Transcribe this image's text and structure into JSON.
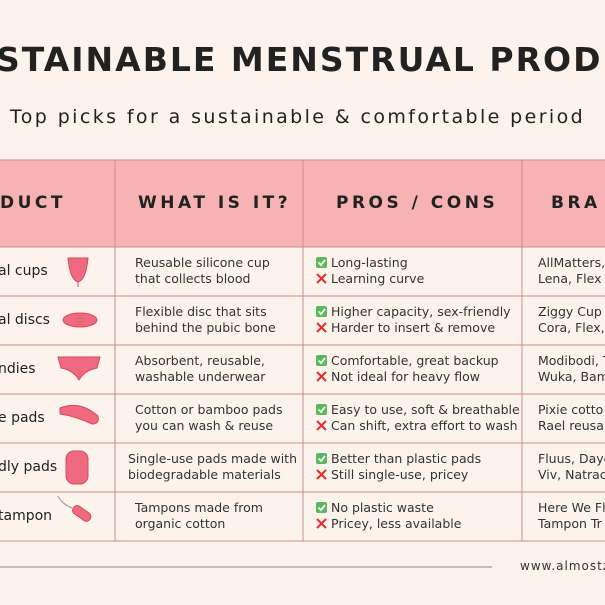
{
  "header": {
    "title": "STAINABLE MENSTRUAL PRODUC",
    "subtitle": "Top picks for a sustainable & comfortable period"
  },
  "table": {
    "columns": [
      "DUCT",
      "WHAT IS IT?",
      "PROS / CONS",
      "BRA"
    ],
    "rows": [
      {
        "product": "al cups",
        "what": [
          "Reusable silicone cup",
          "that collects blood"
        ],
        "pro": "Long-lasting",
        "con": "Learning curve",
        "brands": [
          "AllMatters,",
          "Lena, Flex C"
        ]
      },
      {
        "product": "al discs",
        "what": [
          "Flexible disc that sits",
          "behind the pubic bone"
        ],
        "pro": "Higher capacity, sex-friendly",
        "con": "Harder to insert & remove",
        "brands": [
          "Ziggy Cup",
          "Cora, Flex, I"
        ]
      },
      {
        "product": "ndies",
        "what": [
          "Absorbent, reusable,",
          "washable underwear"
        ],
        "pro": "Comfortable, great backup",
        "con": "Not ideal for heavy flow",
        "brands": [
          "Modibodi, T",
          "Wuka, Bam"
        ]
      },
      {
        "product": "e pads",
        "what": [
          "Cotton or bamboo pads",
          "you can wash & reuse"
        ],
        "pro": "Easy to use, soft & breathable",
        "con": "Can shift, extra effort to wash",
        "brands": [
          "Pixie cotto",
          "Rael reusab"
        ]
      },
      {
        "product": "dly pads",
        "what": [
          "Single-use pads made with",
          "biodegradable materials"
        ],
        "pro": "Better than plastic pads",
        "con": "Still single-use, pricey",
        "brands": [
          "Fluus, Daye",
          "Viv, Natrac"
        ]
      },
      {
        "product": "tampon",
        "what": [
          "Tampons made from",
          "organic cotton"
        ],
        "pro": "No plastic waste",
        "con": "Pricey, less available",
        "brands": [
          "Here We Fl",
          "Tampon Tr"
        ]
      }
    ]
  },
  "footer": {
    "url": "www.almostze"
  }
}
